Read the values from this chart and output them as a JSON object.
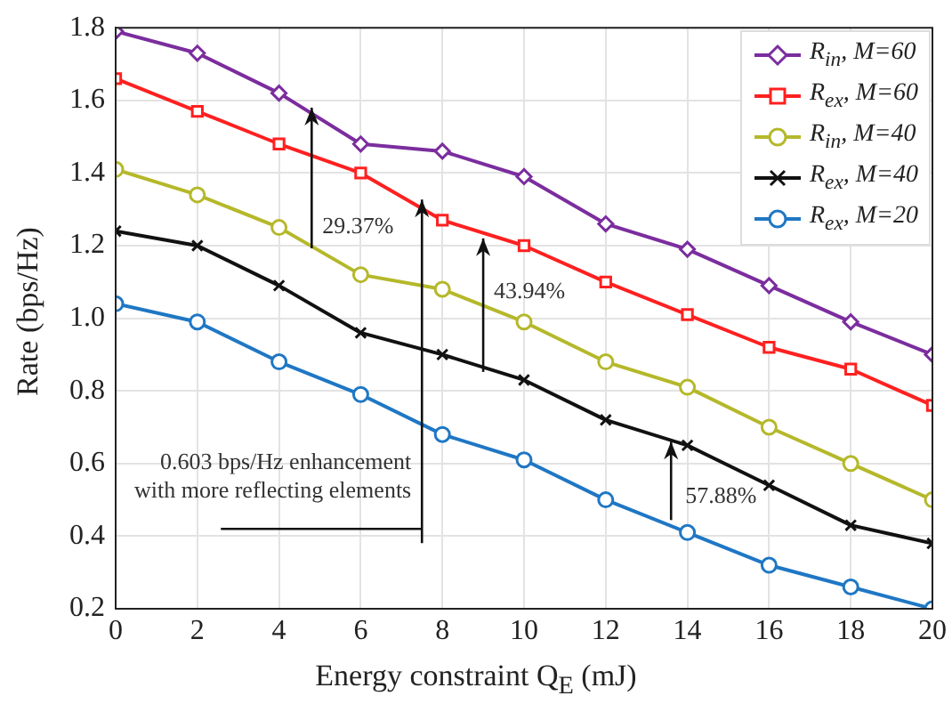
{
  "chart_data": {
    "type": "line",
    "xlabel": "Energy constraint Q$_{E}$ (mJ)",
    "ylabel": "Rate (bps/Hz)",
    "x": [
      0,
      2,
      4,
      6,
      8,
      10,
      12,
      14,
      16,
      18,
      20
    ],
    "series": [
      {
        "name": "R$_{in}$, M=60",
        "color": "#7b2d9e",
        "marker": "diamond",
        "values": [
          1.79,
          1.73,
          1.62,
          1.48,
          1.46,
          1.39,
          1.26,
          1.19,
          1.09,
          0.99,
          0.9
        ]
      },
      {
        "name": "R$_{ex}$, M=60",
        "color": "#ff2020",
        "marker": "square",
        "values": [
          1.66,
          1.57,
          1.48,
          1.4,
          1.27,
          1.2,
          1.1,
          1.01,
          0.92,
          0.86,
          0.76
        ]
      },
      {
        "name": "R$_{in}$, M=40",
        "color": "#b5b82a",
        "marker": "circle",
        "values": [
          1.41,
          1.34,
          1.25,
          1.12,
          1.08,
          0.99,
          0.88,
          0.81,
          0.7,
          0.6,
          0.5
        ]
      },
      {
        "name": "R$_{ex}$, M=40",
        "color": "#111111",
        "marker": "cross",
        "values": [
          1.24,
          1.2,
          1.09,
          0.96,
          0.9,
          0.83,
          0.72,
          0.65,
          0.54,
          0.43,
          0.38
        ]
      },
      {
        "name": "R$_{ex}$, M=20",
        "color": "#1f77c4",
        "marker": "circle",
        "values": [
          1.04,
          0.99,
          0.88,
          0.79,
          0.68,
          0.61,
          0.5,
          0.41,
          0.32,
          0.26,
          0.2
        ]
      }
    ],
    "xlim": [
      0,
      20
    ],
    "xticks": [
      0,
      2,
      4,
      6,
      8,
      10,
      12,
      14,
      16,
      18,
      20
    ],
    "ylim": [
      0.2,
      1.8
    ],
    "yticks": [
      0.2,
      0.4,
      0.6,
      0.8,
      {
        "value": 1.0,
        "label": "1.0"
      },
      1.2,
      1.4,
      1.6,
      1.8
    ],
    "grid": true,
    "legend": "top right",
    "line_style": "solid",
    "annotations": [
      {
        "text": "29.37%",
        "x": 4.8,
        "y": 1.58
      },
      {
        "text": "43.94%",
        "x": 9,
        "y": 1.22
      },
      {
        "text": "57.88%",
        "x": 13.6,
        "y": 0.66
      },
      "0.603 bps/Hz enhancement\nwith more reflecting elements"
    ]
  }
}
